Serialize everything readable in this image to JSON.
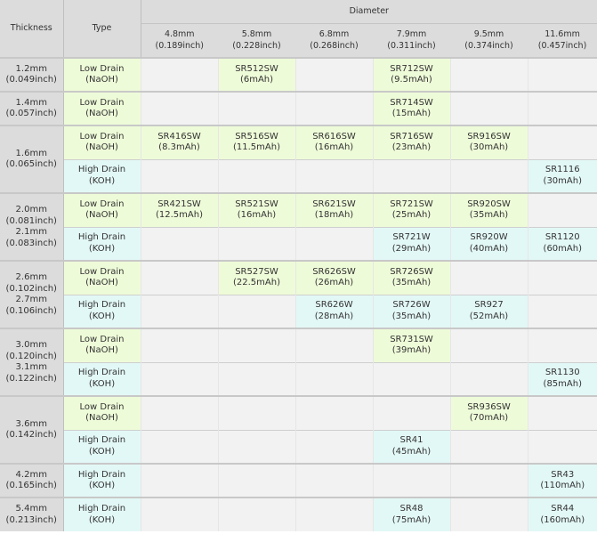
{
  "header": {
    "thickness": "Thickness",
    "type": "Type",
    "diameter": "Diameter"
  },
  "diameters": [
    {
      "mm": "4.8mm",
      "inch": "(0.189inch)"
    },
    {
      "mm": "5.8mm",
      "inch": "(0.228inch)"
    },
    {
      "mm": "6.8mm",
      "inch": "(0.268inch)"
    },
    {
      "mm": "7.9mm",
      "inch": "(0.311inch)"
    },
    {
      "mm": "9.5mm",
      "inch": "(0.374inch)"
    },
    {
      "mm": "11.6mm",
      "inch": "(0.457inch)"
    }
  ],
  "types": {
    "low_name": "Low Drain",
    "low_chem": "(NaOH)",
    "high_name": "High Drain",
    "high_chem": "(KOH)"
  },
  "thickness": {
    "t12": [
      "1.2mm",
      "(0.049inch)"
    ],
    "t14": [
      "1.4mm",
      "(0.057inch)"
    ],
    "t16": [
      "1.6mm",
      "(0.065inch)"
    ],
    "t20_21": [
      "2.0mm",
      "(0.081inch)",
      "2.1mm",
      "(0.083inch)"
    ],
    "t26_27": [
      "2.6mm",
      "(0.102inch)",
      "2.7mm",
      "(0.106inch)"
    ],
    "t30_31": [
      "3.0mm",
      "(0.120inch)",
      "3.1mm",
      "(0.122inch)"
    ],
    "t36": [
      "3.6mm",
      "(0.142inch)"
    ],
    "t42": [
      "4.2mm",
      "(0.165inch)"
    ],
    "t54": [
      "5.4mm",
      "(0.213inch)"
    ]
  },
  "cells": {
    "sr512sw": [
      "SR512SW",
      "(6mAh)"
    ],
    "sr712sw": [
      "SR712SW",
      "(9.5mAh)"
    ],
    "sr714sw": [
      "SR714SW",
      "(15mAh)"
    ],
    "sr416sw": [
      "SR416SW",
      "(8.3mAh)"
    ],
    "sr516sw": [
      "SR516SW",
      "(11.5mAh)"
    ],
    "sr616sw": [
      "SR616SW",
      "(16mAh)"
    ],
    "sr716sw": [
      "SR716SW",
      "(23mAh)"
    ],
    "sr916sw": [
      "SR916SW",
      "(30mAh)"
    ],
    "sr1116": [
      "SR1116",
      "(30mAh)"
    ],
    "sr421sw": [
      "SR421SW",
      "(12.5mAh)"
    ],
    "sr521sw": [
      "SR521SW",
      "(16mAh)"
    ],
    "sr621sw": [
      "SR621SW",
      "(18mAh)"
    ],
    "sr721sw": [
      "SR721SW",
      "(25mAh)"
    ],
    "sr920sw": [
      "SR920SW",
      "(35mAh)"
    ],
    "sr721w": [
      "SR721W",
      "(29mAh)"
    ],
    "sr920w": [
      "SR920W",
      "(40mAh)"
    ],
    "sr1120": [
      "SR1120",
      "(60mAh)"
    ],
    "sr527sw": [
      "SR527SW",
      "(22.5mAh)"
    ],
    "sr626sw": [
      "SR626SW",
      "(26mAh)"
    ],
    "sr726sw": [
      "SR726SW",
      "(35mAh)"
    ],
    "sr626w": [
      "SR626W",
      "(28mAh)"
    ],
    "sr726w": [
      "SR726W",
      "(35mAh)"
    ],
    "sr927": [
      "SR927",
      "(52mAh)"
    ],
    "sr731sw": [
      "SR731SW",
      "(39mAh)"
    ],
    "sr1130": [
      "SR1130",
      "(85mAh)"
    ],
    "sr936sw": [
      "SR936SW",
      "(70mAh)"
    ],
    "sr41": [
      "SR41",
      "(45mAh)"
    ],
    "sr43": [
      "SR43",
      "(110mAh)"
    ],
    "sr48": [
      "SR48",
      "(75mAh)"
    ],
    "sr44": [
      "SR44",
      "(160mAh)"
    ]
  },
  "colors": {
    "header_bg": "#dcdcdc",
    "low_drain_bg": "#eefbd8",
    "high_drain_bg": "#e2f8f6",
    "empty_bg": "#f2f2f2"
  }
}
